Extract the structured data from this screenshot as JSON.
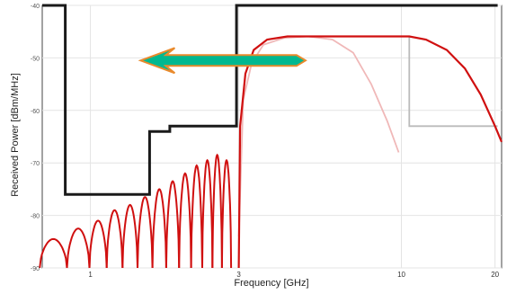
{
  "chart_data": {
    "type": "line",
    "title": "",
    "xlabel": "Frequency [GHz]",
    "ylabel": "Received Power [dBm/MHz]",
    "x_tick_labels": [
      "1",
      "3",
      "10",
      "20"
    ],
    "y_tick_labels": [
      "-40",
      "-50",
      "-60",
      "-70",
      "-80",
      "-90"
    ],
    "xlim": [
      0.7,
      21
    ],
    "ylim": [
      -90,
      -40
    ],
    "x_scale": "log",
    "grid": true,
    "legend": "none",
    "series": [
      {
        "role": "mask",
        "color": "#1a1a1a",
        "points": [
          [
            0.7,
            -40
          ],
          [
            0.83,
            -40
          ],
          [
            0.83,
            -76
          ],
          [
            1.55,
            -76
          ],
          [
            1.55,
            -64
          ],
          [
            1.8,
            -64
          ],
          [
            1.8,
            -63
          ],
          [
            2.95,
            -63
          ],
          [
            2.95,
            -40
          ],
          [
            20.4,
            -40
          ]
        ]
      },
      {
        "role": "mask-light",
        "color": "#bbbbbb",
        "points": [
          [
            10.6,
            -46
          ],
          [
            10.6,
            -63
          ],
          [
            20.4,
            -63
          ]
        ]
      },
      {
        "role": "spectrum-faint",
        "color": "#f0b8b8",
        "points": [
          [
            3.0,
            -84
          ],
          [
            3.1,
            -58
          ],
          [
            3.3,
            -51
          ],
          [
            3.6,
            -47.5
          ],
          [
            4.2,
            -46.2
          ],
          [
            5.0,
            -45.9
          ],
          [
            6.0,
            -46.5
          ],
          [
            7.0,
            -49
          ],
          [
            8.0,
            -55
          ],
          [
            9.0,
            -62
          ],
          [
            9.8,
            -68
          ]
        ]
      },
      {
        "role": "spectrum",
        "color": "#d01010",
        "points": [
          [
            3.0,
            -90
          ],
          [
            3.03,
            -63
          ],
          [
            3.15,
            -53
          ],
          [
            3.35,
            -48.5
          ],
          [
            3.7,
            -46.5
          ],
          [
            4.3,
            -45.9
          ],
          [
            6.0,
            -45.9
          ],
          [
            10.6,
            -45.9
          ],
          [
            12.0,
            -46.5
          ],
          [
            14.0,
            -48.5
          ],
          [
            16.0,
            -52
          ],
          [
            18.0,
            -57
          ],
          [
            20.0,
            -63
          ],
          [
            21.0,
            -66
          ]
        ]
      },
      {
        "role": "sidelobes",
        "color": "#d01010",
        "peaks": [
          [
            0.76,
            -84.5
          ],
          [
            0.93,
            -82.5
          ],
          [
            1.06,
            -81
          ],
          [
            1.2,
            -79
          ],
          [
            1.34,
            -78
          ],
          [
            1.5,
            -76.5
          ],
          [
            1.67,
            -75
          ],
          [
            1.84,
            -73.5
          ],
          [
            2.02,
            -72
          ],
          [
            2.2,
            -70.5
          ],
          [
            2.38,
            -69.5
          ],
          [
            2.56,
            -68.5
          ],
          [
            2.74,
            -69.5
          ]
        ]
      }
    ],
    "annotation": {
      "shape": "arrow-left",
      "fill": "#00b890",
      "outline": "#e98a2c",
      "x_from": 4.6,
      "x_to": 1.45,
      "y": -50.5
    }
  }
}
